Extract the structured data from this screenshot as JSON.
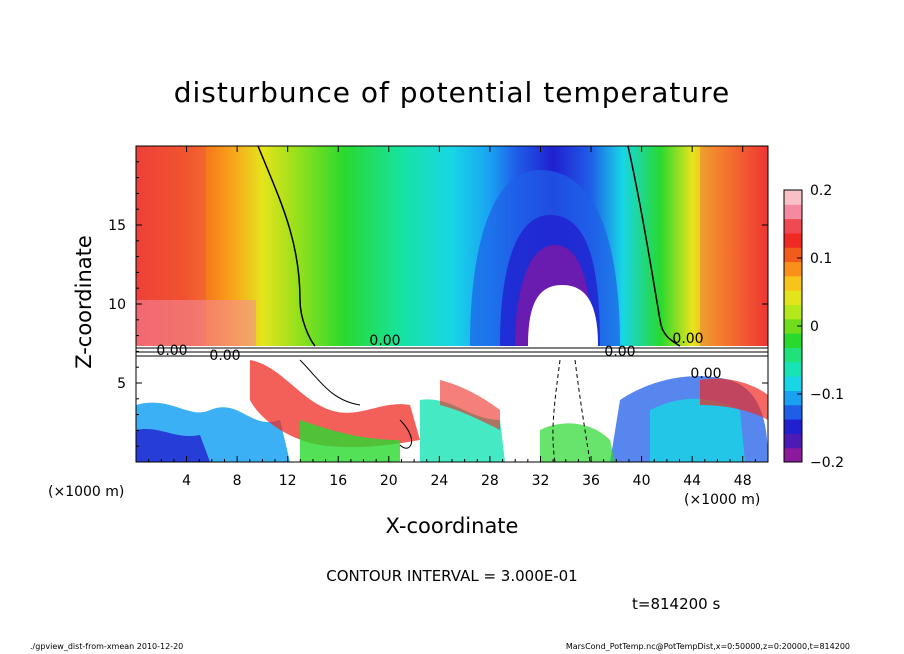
{
  "chart_data": {
    "type": "heatmap",
    "title": "disturbunce of potential temperature",
    "xlabel": "X-coordinate",
    "ylabel": "Z-coordinate",
    "x_unit_left": "(×1000 m)",
    "x_unit_right": "(×1000 m)",
    "xlim": [
      0,
      50
    ],
    "ylim": [
      0,
      20
    ],
    "xticks": [
      4,
      8,
      12,
      16,
      20,
      24,
      28,
      32,
      36,
      40,
      44,
      48
    ],
    "yticks": [
      5,
      10,
      15
    ],
    "colorbar": {
      "range": [
        -0.2,
        0.2
      ],
      "ticks": [
        {
          "value": 0.2,
          "label": "0.2"
        },
        {
          "value": 0.1,
          "label": "0.1"
        },
        {
          "value": 0,
          "label": "0"
        },
        {
          "value": -0.1,
          "label": "−0.1"
        },
        {
          "value": -0.2,
          "label": "−0.2"
        }
      ],
      "colors": [
        "#8b1a9c",
        "#4b1bb4",
        "#2020d0",
        "#1f5fe8",
        "#1aa2f2",
        "#18d6e6",
        "#17e3b4",
        "#1fe37a",
        "#28d92e",
        "#6fdd1c",
        "#b4e81a",
        "#e4e41c",
        "#f7c51a",
        "#f8901a",
        "#f25b1c",
        "#ef2a22",
        "#ef4a52",
        "#f48aa0",
        "#f9c0c8"
      ]
    },
    "contour_interval_text": "CONTOUR INTERVAL = 3.000E-01",
    "contour_labels": [
      "0.00",
      "0.00",
      "0.00",
      "0.00",
      "0.00",
      "0.00"
    ],
    "time_text": "t=814200 s"
  },
  "footer": {
    "left": "./gpview_dist-from-xmean  2010-12-20",
    "right": "MarsCond_PotTemp.nc@PotTempDist,x=0:50000,z=0:20000,t=814200"
  }
}
